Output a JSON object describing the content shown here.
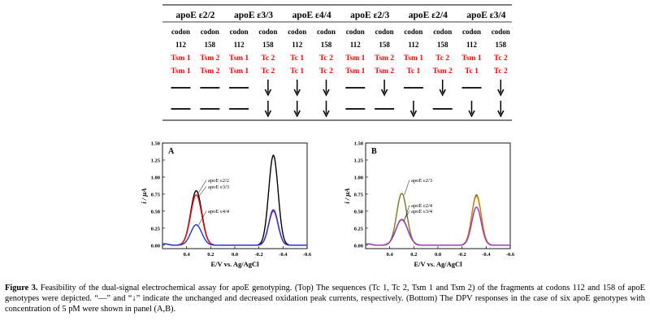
{
  "table": {
    "headers": [
      "apoE ε2/2",
      "apoE ε3/3",
      "apoE ε4/4",
      "apoE ε2/3",
      "apoE ε2/4",
      "apoE ε3/4"
    ],
    "codon_label": "codon",
    "codons": [
      "112",
      "158"
    ],
    "seq_row1": [
      "Tsm 1",
      "Tsm 2",
      "Tsm 1",
      "Tc 2",
      "Tc 1",
      "Tc 2",
      "Tsm 1",
      "Tsm 2",
      "Tsm 1",
      "Tc 2",
      "Tsm 1",
      "Tc 2"
    ],
    "seq_row2": [
      "Tsm 1",
      "Tsm 2",
      "Tsm 1",
      "Tc 2",
      "Tc 1",
      "Tc 2",
      "Tsm 1",
      "Tsm 2",
      "Tc 1",
      "Tsm 2",
      "Tc 1",
      "Tc 2"
    ],
    "signal_row1": [
      "dash",
      "dash",
      "dash",
      "arrow",
      "arrow",
      "arrow",
      "dash",
      "arrow",
      "dash",
      "arrow",
      "dash",
      "arrow"
    ],
    "signal_row2": [
      "dash",
      "dash",
      "dash",
      "arrow",
      "arrow",
      "arrow",
      "dash",
      "dash",
      "arrow",
      "dash",
      "arrow",
      "arrow"
    ],
    "accent_color": "#ff0000"
  },
  "chart_data": [
    {
      "type": "line",
      "panel_label": "A",
      "ylabel": "i / μA",
      "xlabel": "E/V vs. Ag/AgCl",
      "xlim": [
        0.6,
        -0.6
      ],
      "ylim": [
        -0.05,
        1.5
      ],
      "x_ticks": [
        "0.4",
        "0.2",
        "0.0",
        "-0.2",
        "-0.4",
        "-0.6"
      ],
      "y_ticks": [
        "0.00",
        "0.25",
        "0.50",
        "0.75",
        "1.00",
        "1.25",
        "1.50"
      ],
      "series": [
        {
          "name": "apoE ε2/2",
          "color": "#000000",
          "peaks": [
            [
              0.32,
              0.8,
              0.065
            ],
            [
              -0.32,
              1.32,
              0.055
            ]
          ]
        },
        {
          "name": "apoE ε3/3",
          "color": "#ee1111",
          "peaks": [
            [
              0.32,
              0.74,
              0.065
            ],
            [
              -0.32,
              0.5,
              0.055
            ]
          ]
        },
        {
          "name": "apoE ε4/4",
          "color": "#2233dd",
          "peaks": [
            [
              0.32,
              0.3,
              0.065
            ],
            [
              -0.32,
              0.52,
              0.055
            ]
          ]
        }
      ]
    },
    {
      "type": "line",
      "panel_label": "B",
      "ylabel": "i / μA",
      "xlabel": "E/V vs. Ag/AgCl",
      "xlim": [
        0.6,
        -0.6
      ],
      "ylim": [
        -0.05,
        1.5
      ],
      "x_ticks": [
        "0.4",
        "0.2",
        "0.0",
        "-0.2",
        "-0.4",
        "-0.6"
      ],
      "y_ticks": [
        "0.00",
        "0.25",
        "0.50",
        "0.75",
        "1.00",
        "1.25",
        "1.50"
      ],
      "series": [
        {
          "name": "apoE ε2/3",
          "color": "#7a7a1a",
          "peaks": [
            [
              0.3,
              0.76,
              0.06
            ],
            [
              -0.32,
              0.74,
              0.055
            ]
          ]
        },
        {
          "name": "apoE ε2/4",
          "color": "#dd8800",
          "peaks": [
            [
              0.3,
              0.37,
              0.07
            ],
            [
              -0.32,
              0.72,
              0.055
            ]
          ]
        },
        {
          "name": "apoE ε3/4",
          "color": "#9933cc",
          "peaks": [
            [
              0.3,
              0.38,
              0.07
            ],
            [
              -0.32,
              0.56,
              0.055
            ]
          ]
        }
      ]
    }
  ],
  "caption": {
    "label": "Figure 3.",
    "text": " Feasibility of the dual-signal electrochemical assay for apoE genotyping. (Top) The sequences (Tc 1, Tc 2, Tsm 1 and Tsm 2) of the fragments at codons 112 and 158 of apoE genotypes were depicted. “—” and “↓” indicate the unchanged and decreased oxidation peak currents, respectively. (Bottom) The DPV responses in the case of six apoE genotypes with concentration of 5 pM were shown in panel (A,B)."
  }
}
